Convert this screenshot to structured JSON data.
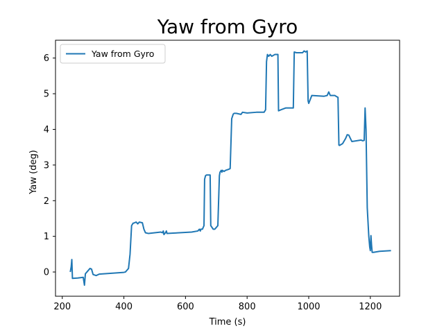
{
  "chart_data": {
    "type": "line",
    "title": "Yaw from Gyro",
    "xlabel": "Time (s)",
    "ylabel": "Yaw (deg)",
    "xlim": [
      178,
      1295
    ],
    "ylim": [
      -0.68,
      6.5
    ],
    "xticks": [
      200,
      400,
      600,
      800,
      1000,
      1200
    ],
    "yticks": [
      0,
      1,
      2,
      3,
      4,
      5,
      6
    ],
    "grid": false,
    "legend": {
      "position": "top-left",
      "entries": [
        "Yaw from Gyro"
      ]
    },
    "colors": {
      "series": "#1f77b4",
      "axes": "#000000",
      "background": "#ffffff"
    },
    "series": [
      {
        "name": "Yaw from Gyro",
        "x": [
          226,
          229,
          231,
          233,
          250,
          268,
          272,
          275,
          280,
          290,
          295,
          300,
          310,
          320,
          400,
          405,
          410,
          415,
          420,
          425,
          430,
          432,
          440,
          445,
          450,
          460,
          465,
          470,
          480,
          500,
          520,
          525,
          528,
          530,
          535,
          538,
          540,
          560,
          580,
          620,
          640,
          645,
          648,
          650,
          655,
          660,
          662,
          665,
          668,
          680,
          682,
          690,
          695,
          700,
          705,
          710,
          712,
          716,
          718,
          720,
          725,
          730,
          740,
          745,
          750,
          755,
          758,
          765,
          780,
          785,
          800,
          830,
          855,
          860,
          863,
          866,
          870,
          875,
          880,
          890,
          900,
          902,
          910,
          925,
          930,
          950,
          953,
          960,
          980,
          985,
          990,
          995,
          998,
          1000,
          1010,
          1050,
          1060,
          1065,
          1070,
          1085,
          1090,
          1095,
          1098,
          1100,
          1110,
          1120,
          1125,
          1130,
          1140,
          1170,
          1175,
          1180,
          1183,
          1186,
          1190,
          1195,
          1198,
          1200,
          1202,
          1204,
          1206,
          1210,
          1230,
          1267
        ],
        "y": [
          0.0,
          0.15,
          0.35,
          -0.18,
          -0.17,
          -0.15,
          -0.37,
          -0.05,
          0.0,
          0.1,
          0.08,
          -0.07,
          -0.1,
          -0.06,
          -0.01,
          0.0,
          0.05,
          0.1,
          0.5,
          1.3,
          1.37,
          1.37,
          1.4,
          1.35,
          1.4,
          1.38,
          1.2,
          1.1,
          1.08,
          1.1,
          1.12,
          1.1,
          1.15,
          1.05,
          1.1,
          1.15,
          1.08,
          1.09,
          1.1,
          1.12,
          1.15,
          1.2,
          1.15,
          1.2,
          1.2,
          1.3,
          2.6,
          2.7,
          2.72,
          2.72,
          1.3,
          1.2,
          1.2,
          1.25,
          1.3,
          2.7,
          2.8,
          2.85,
          2.8,
          2.85,
          2.82,
          2.85,
          2.88,
          2.9,
          4.3,
          4.43,
          4.45,
          4.45,
          4.42,
          4.48,
          4.46,
          4.48,
          4.48,
          4.55,
          5.9,
          6.1,
          6.05,
          6.1,
          6.05,
          6.1,
          6.1,
          4.52,
          4.55,
          4.6,
          4.6,
          4.6,
          6.17,
          6.15,
          6.15,
          6.2,
          6.17,
          6.2,
          4.8,
          4.73,
          4.95,
          4.93,
          4.95,
          5.05,
          4.95,
          4.95,
          4.92,
          4.9,
          3.56,
          3.55,
          3.6,
          3.75,
          3.85,
          3.84,
          3.66,
          3.7,
          3.68,
          3.69,
          4.6,
          4.0,
          1.8,
          1.0,
          0.7,
          0.6,
          1.02,
          0.75,
          0.55,
          0.55,
          0.58,
          0.6
        ]
      }
    ]
  }
}
